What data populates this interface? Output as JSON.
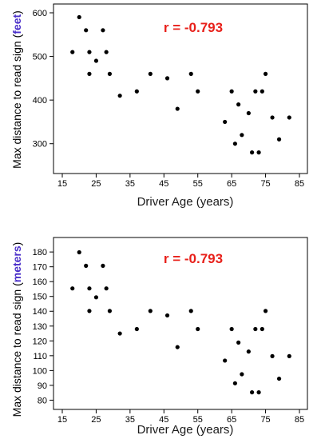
{
  "colors": {
    "r_text": "#e8201a",
    "unit_text": "#4a2fc9",
    "points": "#000000",
    "axes": "#000000"
  },
  "chart_data": [
    {
      "type": "scatter",
      "xlabel": "Driver Age (years)",
      "ylabel_prefix": "Max distance to read sign (",
      "ylabel_unit": "feet",
      "ylabel_suffix": ")",
      "annotation": "r = -0.793",
      "xlim": [
        15,
        85
      ],
      "ylim": [
        250,
        600
      ],
      "xticks": [
        15,
        25,
        35,
        45,
        55,
        65,
        75,
        85
      ],
      "yticks": [
        300,
        400,
        500,
        600
      ],
      "grid": false,
      "points": [
        {
          "x": 18,
          "y": 510
        },
        {
          "x": 20,
          "y": 590
        },
        {
          "x": 22,
          "y": 560
        },
        {
          "x": 23,
          "y": 510
        },
        {
          "x": 23,
          "y": 460
        },
        {
          "x": 25,
          "y": 490
        },
        {
          "x": 27,
          "y": 560
        },
        {
          "x": 28,
          "y": 510
        },
        {
          "x": 29,
          "y": 460
        },
        {
          "x": 32,
          "y": 410
        },
        {
          "x": 37,
          "y": 420
        },
        {
          "x": 41,
          "y": 460
        },
        {
          "x": 46,
          "y": 450
        },
        {
          "x": 49,
          "y": 380
        },
        {
          "x": 53,
          "y": 460
        },
        {
          "x": 55,
          "y": 420
        },
        {
          "x": 63,
          "y": 350
        },
        {
          "x": 65,
          "y": 420
        },
        {
          "x": 66,
          "y": 300
        },
        {
          "x": 67,
          "y": 390
        },
        {
          "x": 68,
          "y": 320
        },
        {
          "x": 70,
          "y": 370
        },
        {
          "x": 71,
          "y": 280
        },
        {
          "x": 72,
          "y": 420
        },
        {
          "x": 73,
          "y": 280
        },
        {
          "x": 74,
          "y": 420
        },
        {
          "x": 75,
          "y": 460
        },
        {
          "x": 77,
          "y": 360
        },
        {
          "x": 79,
          "y": 310
        },
        {
          "x": 82,
          "y": 360
        }
      ]
    },
    {
      "type": "scatter",
      "xlabel": "Driver Age (years)",
      "ylabel_prefix": "Max distance to read sign (",
      "ylabel_unit": "meters",
      "ylabel_suffix": ")",
      "annotation": "r = -0.793",
      "xlim": [
        15,
        85
      ],
      "ylim": [
        77,
        186
      ],
      "xticks": [
        15,
        25,
        35,
        45,
        55,
        65,
        75,
        85
      ],
      "yticks": [
        80,
        90,
        100,
        110,
        120,
        130,
        140,
        150,
        160,
        170,
        180
      ],
      "grid": false,
      "points": [
        {
          "x": 18,
          "y": 155.4
        },
        {
          "x": 20,
          "y": 179.8
        },
        {
          "x": 22,
          "y": 170.7
        },
        {
          "x": 23,
          "y": 155.4
        },
        {
          "x": 23,
          "y": 140.2
        },
        {
          "x": 25,
          "y": 149.4
        },
        {
          "x": 27,
          "y": 170.7
        },
        {
          "x": 28,
          "y": 155.4
        },
        {
          "x": 29,
          "y": 140.2
        },
        {
          "x": 32,
          "y": 125.0
        },
        {
          "x": 37,
          "y": 128.0
        },
        {
          "x": 41,
          "y": 140.2
        },
        {
          "x": 46,
          "y": 137.2
        },
        {
          "x": 49,
          "y": 115.8
        },
        {
          "x": 53,
          "y": 140.2
        },
        {
          "x": 55,
          "y": 128.0
        },
        {
          "x": 63,
          "y": 106.7
        },
        {
          "x": 65,
          "y": 128.0
        },
        {
          "x": 66,
          "y": 91.4
        },
        {
          "x": 67,
          "y": 118.9
        },
        {
          "x": 68,
          "y": 97.5
        },
        {
          "x": 70,
          "y": 112.8
        },
        {
          "x": 71,
          "y": 85.3
        },
        {
          "x": 72,
          "y": 128.0
        },
        {
          "x": 73,
          "y": 85.3
        },
        {
          "x": 74,
          "y": 128.0
        },
        {
          "x": 75,
          "y": 140.2
        },
        {
          "x": 77,
          "y": 109.7
        },
        {
          "x": 79,
          "y": 94.5
        },
        {
          "x": 82,
          "y": 109.7
        }
      ]
    }
  ]
}
